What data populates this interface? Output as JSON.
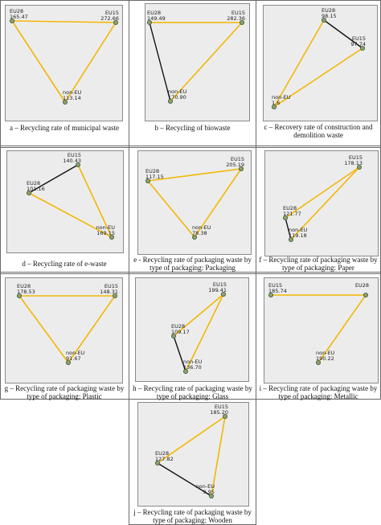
{
  "panels": [
    {
      "id": "a",
      "caption": "a – Recycling rate of municipal waste",
      "nodes": [
        {
          "name": "EU28",
          "value": "165.47"
        },
        {
          "name": "EU15",
          "value": "272.66"
        },
        {
          "name": "non-EU",
          "value": "113.14"
        }
      ],
      "edges": [
        {
          "from": 0,
          "to": 1,
          "color": "#f2b705"
        },
        {
          "from": 1,
          "to": 2,
          "color": "#f2b705"
        },
        {
          "from": 0,
          "to": 2,
          "color": "#f2b705"
        }
      ]
    },
    {
      "id": "b",
      "caption": "b – Recycling of biowaste",
      "nodes": [
        {
          "name": "EU28",
          "value": "149.49"
        },
        {
          "name": "EU15",
          "value": "282.36"
        },
        {
          "name": "non-EU",
          "value": "170.90"
        }
      ],
      "edges": [
        {
          "from": 0,
          "to": 1,
          "color": "#f2b705"
        },
        {
          "from": 1,
          "to": 2,
          "color": "#f2b705"
        },
        {
          "from": 0,
          "to": 2,
          "color": "#111111"
        }
      ]
    },
    {
      "id": "c",
      "caption": "c – Recovery rate of construction and demolition waste",
      "nodes": [
        {
          "name": "EU28",
          "value": "98.15"
        },
        {
          "name": "EU15",
          "value": "97.74"
        },
        {
          "name": "non-EU",
          "value": "1.6"
        }
      ],
      "edges": [
        {
          "from": 0,
          "to": 1,
          "color": "#111111"
        },
        {
          "from": 1,
          "to": 2,
          "color": "#f2b705"
        },
        {
          "from": 0,
          "to": 2,
          "color": "#f2b705"
        }
      ]
    },
    {
      "id": "d",
      "caption": "d – Recycling rate of e-waste",
      "nodes": [
        {
          "name": "EU28",
          "value": "101.16"
        },
        {
          "name": "EU15",
          "value": "140.43"
        },
        {
          "name": "non-EU",
          "value": "169.15"
        }
      ],
      "edges": [
        {
          "from": 0,
          "to": 1,
          "color": "#111111"
        },
        {
          "from": 1,
          "to": 2,
          "color": "#f2b705"
        },
        {
          "from": 0,
          "to": 2,
          "color": "#f2b705"
        }
      ]
    },
    {
      "id": "e",
      "caption": "e - Recycling rate of packaging waste by type of packaging: Packaging",
      "nodes": [
        {
          "name": "EU28",
          "value": "117.15"
        },
        {
          "name": "EU15",
          "value": "205.19"
        },
        {
          "name": "non-EU",
          "value": "78.38"
        }
      ],
      "edges": [
        {
          "from": 0,
          "to": 1,
          "color": "#f2b705"
        },
        {
          "from": 1,
          "to": 2,
          "color": "#f2b705"
        },
        {
          "from": 0,
          "to": 2,
          "color": "#f2b705"
        }
      ]
    },
    {
      "id": "f",
      "caption": "f – Recycling rate of packaging waste by type of packaging: Paper",
      "nodes": [
        {
          "name": "EU28",
          "value": "121.77"
        },
        {
          "name": "EU15",
          "value": "178.13"
        },
        {
          "name": "non-EU",
          "value": "119.18"
        }
      ],
      "edges": [
        {
          "from": 0,
          "to": 1,
          "color": "#f2b705"
        },
        {
          "from": 1,
          "to": 2,
          "color": "#f2b705"
        },
        {
          "from": 0,
          "to": 2,
          "color": "#111111"
        }
      ]
    },
    {
      "id": "g",
      "caption": "g – Recycling rate of packaging waste by type of packaging: Plastic",
      "nodes": [
        {
          "name": "EU28",
          "value": "178.53"
        },
        {
          "name": "EU15",
          "value": "148.31"
        },
        {
          "name": "non-EU",
          "value": "91.67"
        }
      ],
      "edges": [
        {
          "from": 0,
          "to": 1,
          "color": "#f2b705"
        },
        {
          "from": 1,
          "to": 2,
          "color": "#f2b705"
        },
        {
          "from": 0,
          "to": 2,
          "color": "#f2b705"
        }
      ]
    },
    {
      "id": "h",
      "caption": "h – Recycling rate of packaging waste by type of packaging: Glass",
      "nodes": [
        {
          "name": "EU28",
          "value": "109.17"
        },
        {
          "name": "EU15",
          "value": "199.41"
        },
        {
          "name": "non-EU",
          "value": "136.70"
        }
      ],
      "edges": [
        {
          "from": 0,
          "to": 1,
          "color": "#f2b705"
        },
        {
          "from": 1,
          "to": 2,
          "color": "#f2b705"
        },
        {
          "from": 0,
          "to": 2,
          "color": "#111111"
        }
      ]
    },
    {
      "id": "i",
      "caption": "i – Recycling rate of packaging waste by type of packaging: Metallic",
      "nodes": [
        {
          "name": "EU15",
          "value": "185.74"
        },
        {
          "name": "EU28",
          "value": ""
        },
        {
          "name": "non-EU",
          "value": "190.22"
        }
      ],
      "edges": [
        {
          "from": 0,
          "to": 1,
          "color": "#f2b705"
        },
        {
          "from": 1,
          "to": 2,
          "color": "#f2b705"
        }
      ]
    },
    {
      "id": "j",
      "caption": "j – Recycling rate of packaging waste by type of packaging: Wooden",
      "nodes": [
        {
          "name": "EU28",
          "value": "127.82"
        },
        {
          "name": "EU15",
          "value": "185.20"
        },
        {
          "name": "non-EU",
          "value": "9.95"
        }
      ],
      "edges": [
        {
          "from": 0,
          "to": 1,
          "color": "#f2b705"
        },
        {
          "from": 1,
          "to": 2,
          "color": "#f2b705"
        },
        {
          "from": 0,
          "to": 2,
          "color": "#111111"
        }
      ]
    }
  ],
  "colors": {
    "node_fill": "#8fa06a",
    "node_stroke": "#3a5a3a"
  }
}
